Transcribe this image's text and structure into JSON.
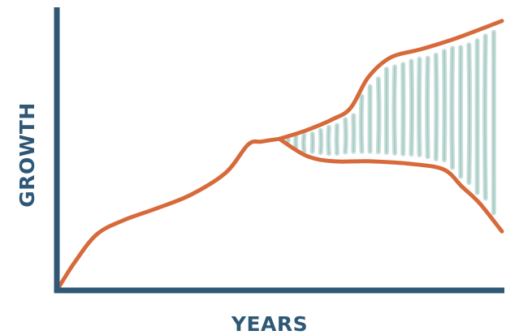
{
  "chart_data": {
    "type": "line",
    "xlabel": "YEARS",
    "ylabel": "GROWTH",
    "xlim": [
      0,
      100
    ],
    "ylim": [
      0,
      100
    ],
    "grid": false,
    "legend": "none",
    "series": [
      {
        "role": "shared-trend",
        "color": "#d76a3b",
        "x": [
          0,
          4,
          9,
          15,
          22,
          30,
          38,
          43,
          46,
          50
        ],
        "y": [
          0,
          10,
          20,
          25,
          29,
          34,
          42,
          52,
          53,
          54
        ]
      },
      {
        "role": "upper-bound",
        "color": "#d76a3b",
        "x": [
          50,
          56,
          62,
          66,
          70,
          75,
          82,
          90,
          100
        ],
        "y": [
          54,
          57,
          61,
          65,
          76,
          83,
          86,
          90,
          96
        ]
      },
      {
        "role": "lower-bound",
        "color": "#d76a3b",
        "x": [
          50,
          56,
          62,
          70,
          80,
          87,
          91,
          95,
          100
        ],
        "y": [
          54,
          48,
          46,
          46,
          45,
          43,
          37,
          31,
          21
        ]
      }
    ],
    "band": {
      "between": [
        "upper-bound",
        "lower-bound"
      ],
      "start_x": 50,
      "end_x": 100,
      "fill_color": "#c7dfdb",
      "pattern": "vertical-dashes"
    }
  }
}
